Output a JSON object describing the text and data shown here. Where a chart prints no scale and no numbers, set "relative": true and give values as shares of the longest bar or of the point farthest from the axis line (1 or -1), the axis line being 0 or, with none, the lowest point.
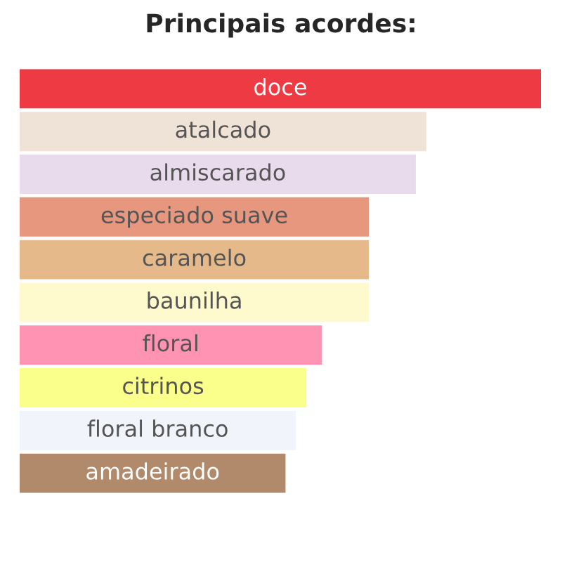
{
  "chart_data": {
    "type": "bar",
    "orientation": "horizontal",
    "relative": true,
    "title": "Principais acordes:",
    "categories": [
      "doce",
      "atalcado",
      "almiscarado",
      "especiado suave",
      "caramelo",
      "baunilha",
      "floral",
      "citrinos",
      "floral branco",
      "amadeirado"
    ],
    "values": [
      1,
      0.78,
      0.76,
      0.67,
      0.67,
      0.67,
      0.58,
      0.55,
      0.53,
      0.51
    ],
    "colors": [
      "#ee3a43",
      "#efe2d6",
      "#e8dcec",
      "#e8977f",
      "#e5b98a",
      "#fffacd",
      "#fe93b3",
      "#f9ff8a",
      "#f1f4fb",
      "#b08a6a"
    ]
  }
}
